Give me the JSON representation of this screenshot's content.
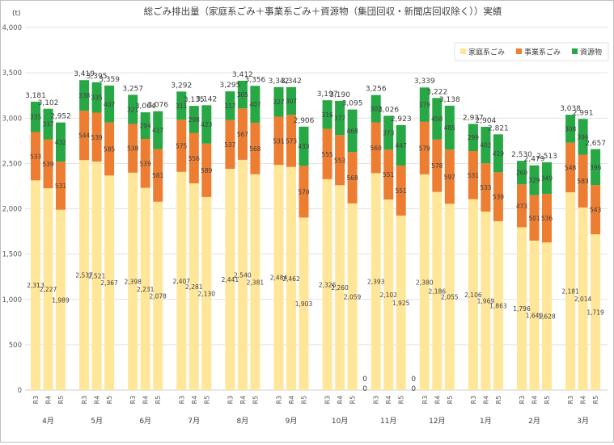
{
  "chart_data": {
    "type": "bar",
    "stacked": true,
    "title": "総ごみ排出量（家庭系ごみ＋事業系ごみ＋資源物（集団回収・新聞店回収除く））実績",
    "ylabel": "(t)",
    "ylim": [
      0,
      4000
    ],
    "yticks": [
      0,
      500,
      1000,
      1500,
      2000,
      2500,
      3000,
      3500,
      4000
    ],
    "ytick_labels": [
      "0",
      "500",
      "1,000",
      "1,500",
      "2,000",
      "2,500",
      "3,000",
      "3,500",
      "4,000"
    ],
    "grid": true,
    "legend_position": "top-right",
    "colors": {
      "katei": "#FFE699",
      "jigyo": "#ED7D31",
      "shigen": "#28A745",
      "grid": "#d9d9d9",
      "text": "#404040"
    },
    "series": [
      {
        "key": "katei",
        "name": "家庭系ごみ"
      },
      {
        "key": "jigyo",
        "name": "事業系ごみ"
      },
      {
        "key": "shigen",
        "name": "資源物"
      }
    ],
    "groups": [
      {
        "month": "4月",
        "bars": [
          {
            "year": "R3",
            "katei": 2313,
            "jigyo": 533,
            "shigen": 335,
            "total": 3181,
            "katei_label": "2,313",
            "jigyo_label": "533",
            "shigen_label": "335",
            "total_label": "3,181"
          },
          {
            "year": "R4",
            "katei": 2227,
            "jigyo": 539,
            "shigen": 337,
            "total": 3102,
            "katei_label": "2,227",
            "jigyo_label": "539",
            "shigen_label": "337",
            "total_label": "3,102"
          },
          {
            "year": "R5",
            "katei": 1989,
            "jigyo": 531,
            "shigen": 432,
            "total": 2952,
            "katei_label": "1,989",
            "jigyo_label": "531",
            "shigen_label": "432",
            "total_label": "2,952"
          }
        ]
      },
      {
        "month": "5月",
        "bars": [
          {
            "year": "R3",
            "katei": 2537,
            "jigyo": 544,
            "shigen": 338,
            "total": 3419,
            "katei_label": "2,537",
            "jigyo_label": "544",
            "shigen_label": "338",
            "total_label": "3,419"
          },
          {
            "year": "R4",
            "katei": 2521,
            "jigyo": 539,
            "shigen": 335,
            "total": 3395,
            "katei_label": "2,521",
            "jigyo_label": "539",
            "shigen_label": "335",
            "total_label": "3,395"
          },
          {
            "year": "R5",
            "katei": 2367,
            "jigyo": 585,
            "shigen": 407,
            "total": 3359,
            "katei_label": "2,367",
            "jigyo_label": "585",
            "shigen_label": "407",
            "total_label": "3,359"
          }
        ]
      },
      {
        "month": "6月",
        "bars": [
          {
            "year": "R3",
            "katei": 2398,
            "jigyo": 538,
            "shigen": 321,
            "total": 3257,
            "katei_label": "2,398",
            "jigyo_label": "538",
            "shigen_label": "321",
            "total_label": "3,257"
          },
          {
            "year": "R4",
            "katei": 2231,
            "jigyo": 539,
            "shigen": 294,
            "total": 3064,
            "katei_label": "2,231",
            "jigyo_label": "539",
            "shigen_label": "294",
            "total_label": "3,064"
          },
          {
            "year": "R5",
            "katei": 2078,
            "jigyo": 581,
            "shigen": 417,
            "total": 3076,
            "katei_label": "2,078",
            "jigyo_label": "581",
            "shigen_label": "417",
            "total_label": "3,076"
          }
        ]
      },
      {
        "month": "7月",
        "bars": [
          {
            "year": "R3",
            "katei": 2407,
            "jigyo": 575,
            "shigen": 311,
            "total": 3292,
            "katei_label": "2,407",
            "jigyo_label": "575",
            "shigen_label": "311",
            "total_label": "3,292"
          },
          {
            "year": "R4",
            "katei": 2281,
            "jigyo": 556,
            "shigen": 298,
            "total": 3135,
            "katei_label": "2,281",
            "jigyo_label": "556",
            "shigen_label": "298",
            "total_label": "3,135"
          },
          {
            "year": "R5",
            "katei": 2130,
            "jigyo": 589,
            "shigen": 423,
            "total": 3142,
            "katei_label": "2,130",
            "jigyo_label": "589",
            "shigen_label": "423",
            "total_label": "3,142"
          }
        ]
      },
      {
        "month": "8月",
        "bars": [
          {
            "year": "R3",
            "katei": 2441,
            "jigyo": 537,
            "shigen": 317,
            "total": 3295,
            "katei_label": "2,441",
            "jigyo_label": "537",
            "shigen_label": "317",
            "total_label": "3,295"
          },
          {
            "year": "R4",
            "katei": 2540,
            "jigyo": 567,
            "shigen": 305,
            "total": 3412,
            "katei_label": "2,540",
            "jigyo_label": "567",
            "shigen_label": "305",
            "total_label": "3,412"
          },
          {
            "year": "R5",
            "katei": 2381,
            "jigyo": 568,
            "shigen": 407,
            "total": 3356,
            "katei_label": "2,381",
            "jigyo_label": "568",
            "shigen_label": "407",
            "total_label": "3,356"
          }
        ]
      },
      {
        "month": "9月",
        "bars": [
          {
            "year": "R3",
            "katei": 2484,
            "jigyo": 531,
            "shigen": 327,
            "total": 3342,
            "katei_label": "2,484",
            "jigyo_label": "531",
            "shigen_label": "327",
            "total_label": "3,342"
          },
          {
            "year": "R4",
            "katei": 2462,
            "jigyo": 573,
            "shigen": 307,
            "total": 3342,
            "katei_label": "2,462",
            "jigyo_label": "573",
            "shigen_label": "307",
            "total_label": "3,342"
          },
          {
            "year": "R5",
            "katei": 1903,
            "jigyo": 570,
            "shigen": 433,
            "total": 2906,
            "katei_label": "1,903",
            "jigyo_label": "570",
            "shigen_label": "433",
            "total_label": "2,906"
          }
        ]
      },
      {
        "month": "10月",
        "bars": [
          {
            "year": "R3",
            "katei": 2326,
            "jigyo": 555,
            "shigen": 316,
            "total": 3197,
            "katei_label": "2,326",
            "jigyo_label": "555",
            "shigen_label": "316",
            "total_label": "3,197"
          },
          {
            "year": "R4",
            "katei": 2260,
            "jigyo": 553,
            "shigen": 377,
            "total": 3190,
            "katei_label": "2,260",
            "jigyo_label": "553",
            "shigen_label": "377",
            "total_label": "3,190"
          },
          {
            "year": "R5",
            "katei": 2059,
            "jigyo": 568,
            "shigen": 468,
            "total": 3095,
            "katei_label": "2,059",
            "jigyo_label": "568",
            "shigen_label": "468",
            "total_label": "3,095"
          }
        ]
      },
      {
        "month": "11月",
        "bars": [
          {
            "year": "R3",
            "katei": 2393,
            "jigyo": 560,
            "shigen": 302,
            "total": 3256,
            "katei_label": "2,393",
            "jigyo_label": "560",
            "shigen_label": "302",
            "total_label": "3,256"
          },
          {
            "year": "R4",
            "katei": 2102,
            "jigyo": 551,
            "shigen": 373,
            "total": 3026,
            "katei_label": "2,102",
            "jigyo_label": "551",
            "shigen_label": "373",
            "total_label": "3,026"
          },
          {
            "year": "R5",
            "katei": 1925,
            "jigyo": 551,
            "shigen": 447,
            "total": 2923,
            "katei_label": "1,925",
            "jigyo_label": "551",
            "shigen_label": "447",
            "total_label": "2,923"
          }
        ]
      },
      {
        "month": "12月",
        "bars": [
          {
            "year": "R3",
            "katei": 2380,
            "jigyo": 579,
            "shigen": 379,
            "total": 3339,
            "katei_label": "2,380",
            "jigyo_label": "579",
            "shigen_label": "379",
            "total_label": "3,339"
          },
          {
            "year": "R4",
            "katei": 2186,
            "jigyo": 578,
            "shigen": 458,
            "total": 3222,
            "katei_label": "2,186",
            "jigyo_label": "578",
            "shigen_label": "458",
            "total_label": "3,222"
          },
          {
            "year": "R5",
            "katei": 2055,
            "jigyo": 597,
            "shigen": 485,
            "total": 3138,
            "katei_label": "2,055",
            "jigyo_label": "597",
            "shigen_label": "485",
            "total_label": "3,138"
          }
        ]
      },
      {
        "month": "1月",
        "bars": [
          {
            "year": "R3",
            "katei": 2106,
            "jigyo": 531,
            "shigen": 299,
            "total": 2937,
            "katei_label": "2,106",
            "jigyo_label": "531",
            "shigen_label": "299",
            "total_label": "2,937"
          },
          {
            "year": "R4",
            "katei": 1969,
            "jigyo": 533,
            "shigen": 402,
            "total": 2904,
            "katei_label": "1,969",
            "jigyo_label": "533",
            "shigen_label": "402",
            "total_label": "2,904"
          },
          {
            "year": "R5",
            "katei": 1863,
            "jigyo": 539,
            "shigen": 419,
            "total": 2821,
            "katei_label": "1,863",
            "jigyo_label": "539",
            "shigen_label": "419",
            "total_label": "2,821"
          }
        ]
      },
      {
        "month": "2月",
        "bars": [
          {
            "year": "R3",
            "katei": 1796,
            "jigyo": 473,
            "shigen": 260,
            "total": 2530,
            "katei_label": "1,796",
            "jigyo_label": "473",
            "shigen_label": "260",
            "total_label": "2,530"
          },
          {
            "year": "R4",
            "katei": 1649,
            "jigyo": 501,
            "shigen": 329,
            "total": 2479,
            "katei_label": "1,649",
            "jigyo_label": "501",
            "shigen_label": "329",
            "total_label": "2,479"
          },
          {
            "year": "R5",
            "katei": 1628,
            "jigyo": 536,
            "shigen": 349,
            "total": 2513,
            "katei_label": "1,628",
            "jigyo_label": "536",
            "shigen_label": "349",
            "total_label": "2,513"
          }
        ]
      },
      {
        "month": "3月",
        "bars": [
          {
            "year": "R3",
            "katei": 2181,
            "jigyo": 548,
            "shigen": 308,
            "total": 3038,
            "katei_label": "2,181",
            "jigyo_label": "548",
            "shigen_label": "308",
            "total_label": "3,038"
          },
          {
            "year": "R4",
            "katei": 2014,
            "jigyo": 583,
            "shigen": 394,
            "total": 2991,
            "katei_label": "2,014",
            "jigyo_label": "583",
            "shigen_label": "394",
            "total_label": "2,991"
          },
          {
            "year": "R5",
            "katei": 1719,
            "jigyo": 543,
            "shigen": 396,
            "total": 2657,
            "katei_label": "1,719",
            "jigyo_label": "543",
            "shigen_label": "396",
            "total_label": "2,657"
          }
        ]
      }
    ],
    "gap_zero_labels": [
      "0",
      "0",
      "0",
      "0"
    ]
  }
}
